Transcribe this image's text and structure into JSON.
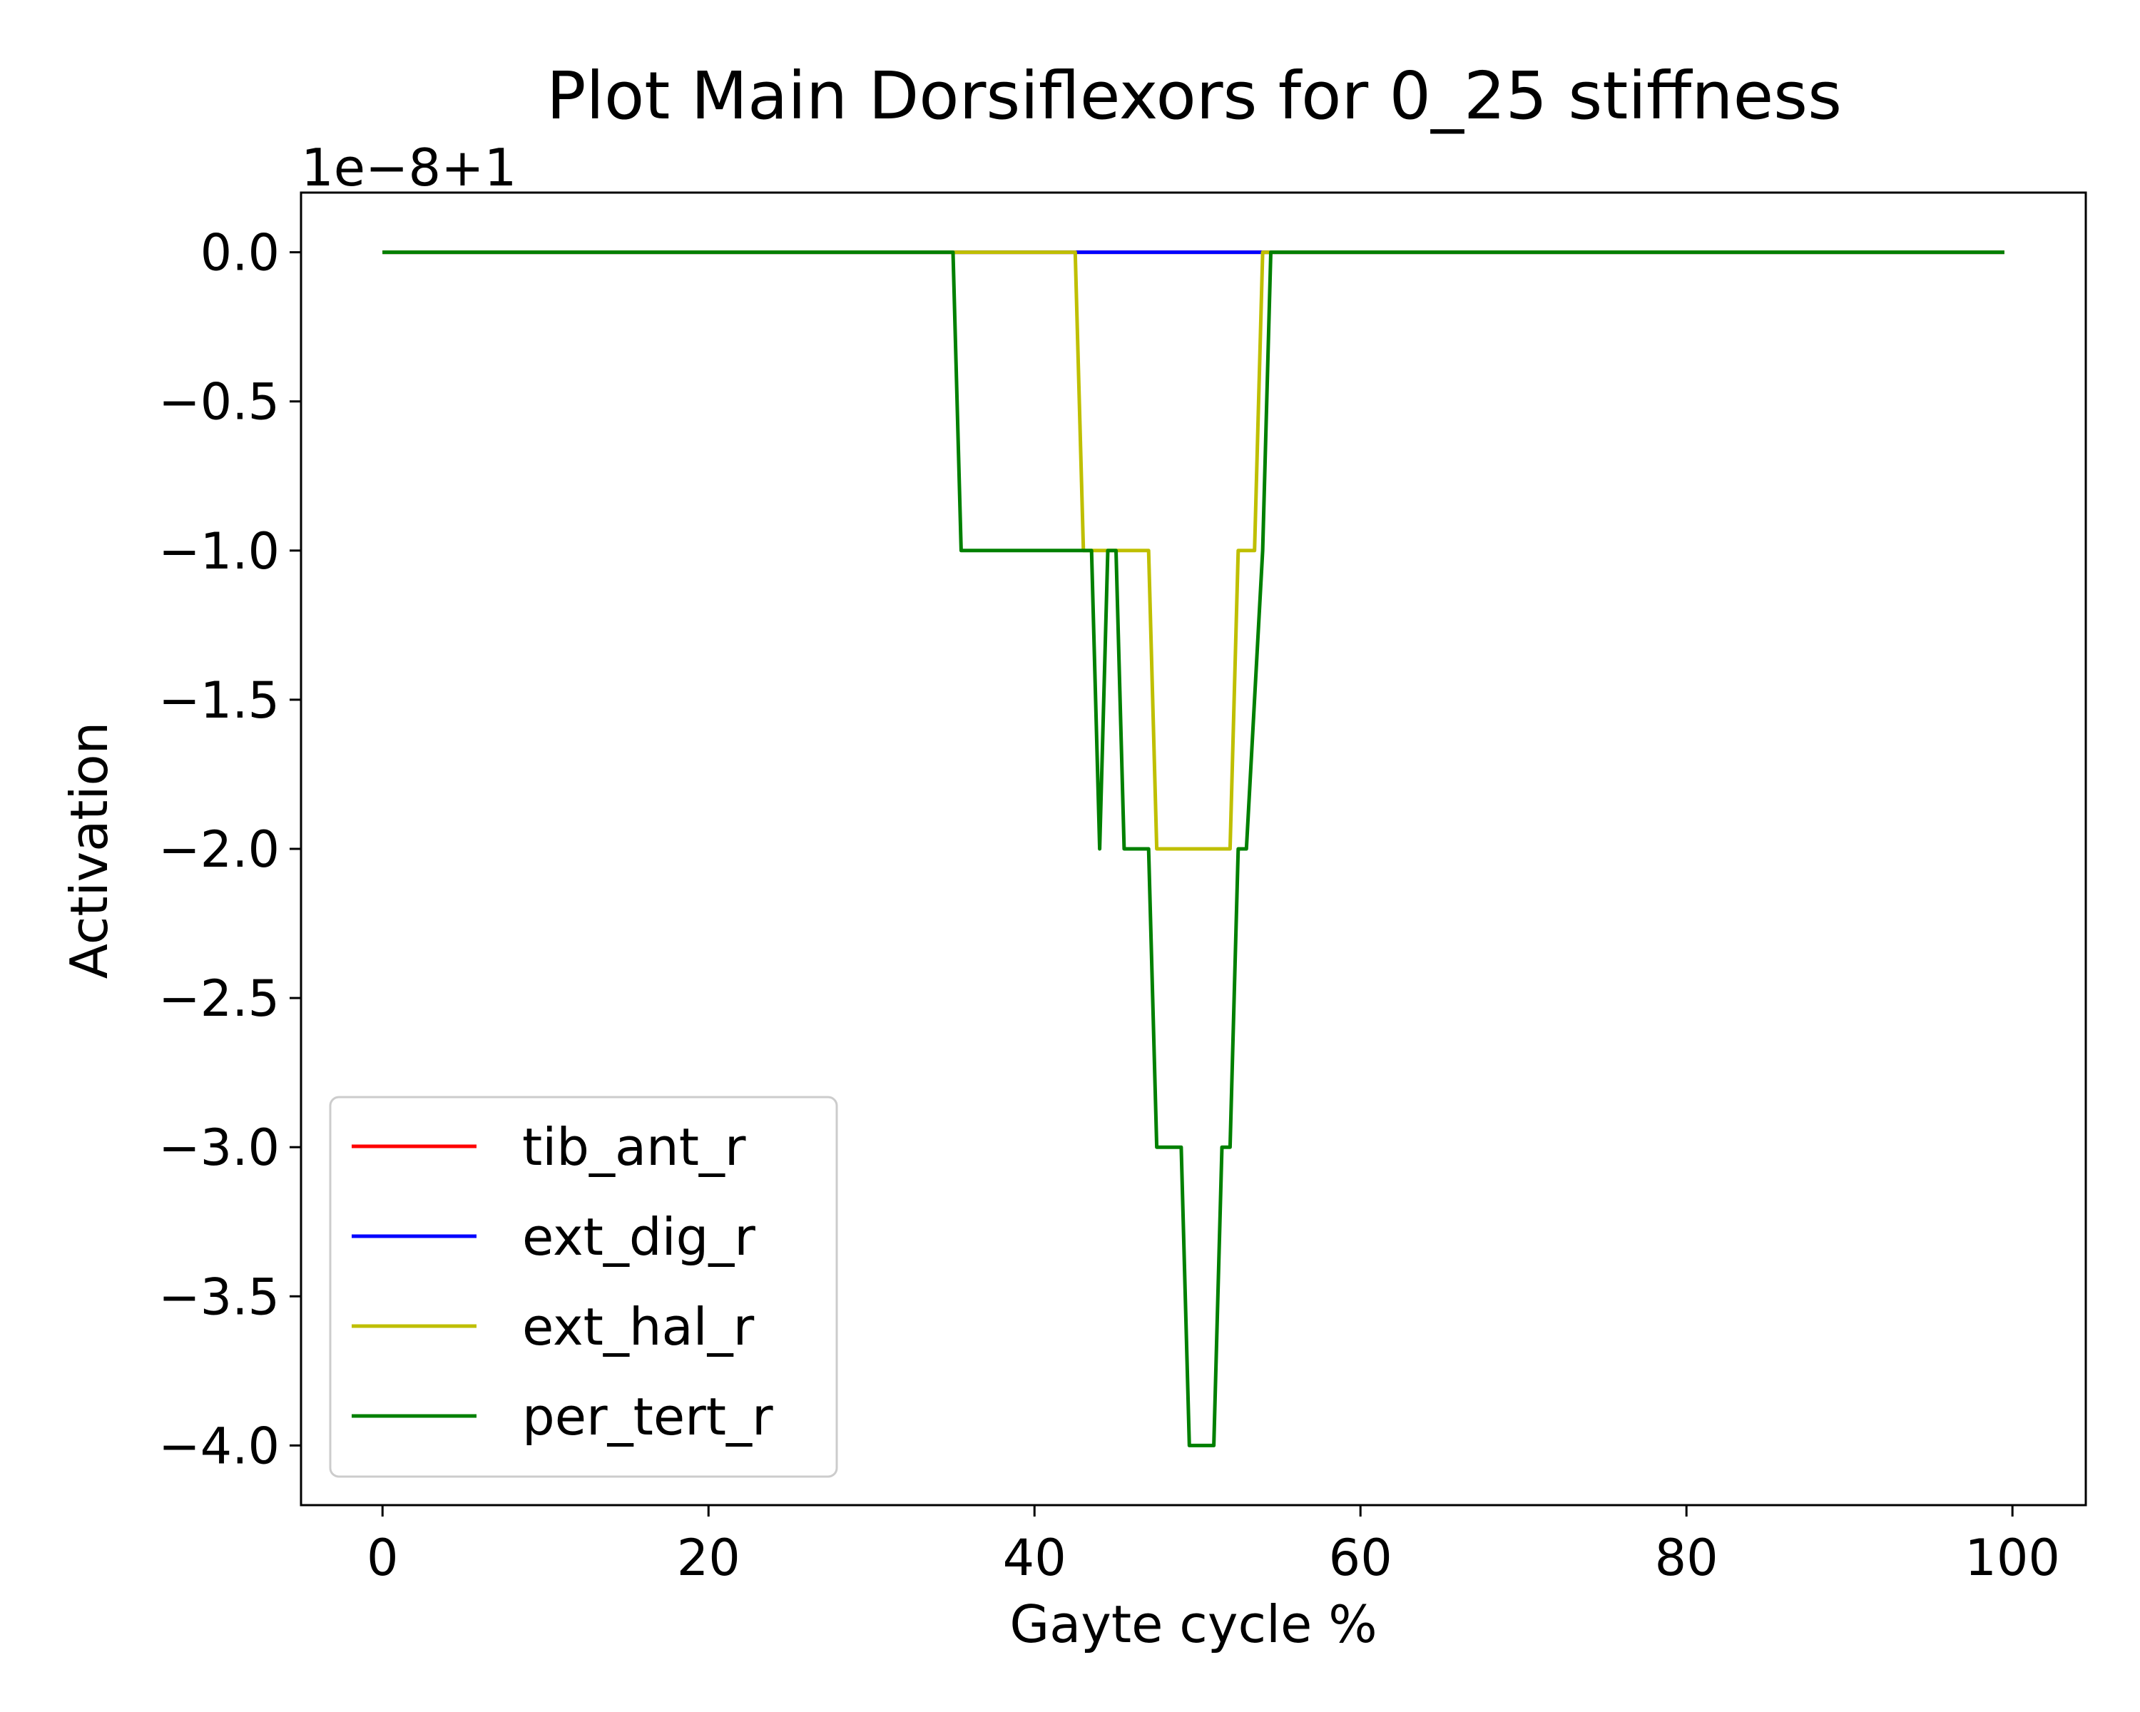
{
  "chart_data": {
    "type": "line",
    "title": "Plot Main Dorsiflexors for 0_25 stiffness",
    "xlabel": "Gayte cycle %",
    "ylabel": "Activation",
    "offset_text": "1e−8+1",
    "xlim": [
      -5,
      104.5
    ],
    "ylim": [
      -4.2,
      0.2
    ],
    "xticks": [
      0,
      20,
      40,
      60,
      80,
      100
    ],
    "yticks": [
      0.0,
      -0.5,
      -1.0,
      -1.5,
      -2.0,
      -2.5,
      -3.0,
      -3.5,
      -4.0
    ],
    "xtick_labels": [
      "0",
      "20",
      "40",
      "60",
      "80",
      "100"
    ],
    "ytick_labels": [
      "0.0",
      "−0.5",
      "−1.0",
      "−1.5",
      "−2.0",
      "−2.5",
      "−3.0",
      "−3.5",
      "−4.0"
    ],
    "grid": false,
    "legend_position": "lower-left",
    "series": [
      {
        "name": "tib_ant_r",
        "color": "#ff0000",
        "x": [
          0,
          99.5
        ],
        "y": [
          0,
          0
        ]
      },
      {
        "name": "ext_dig_r",
        "color": "#0000ff",
        "x": [
          0,
          99.5
        ],
        "y": [
          0,
          0
        ]
      },
      {
        "name": "ext_hal_r",
        "color": "#bfbf00",
        "x": [
          0,
          42.5,
          43,
          47,
          47.5,
          52,
          52.5,
          53.5,
          54,
          99.5
        ],
        "y": [
          0,
          0,
          -1,
          -1,
          -2,
          -2,
          -1,
          -1,
          0,
          0
        ]
      },
      {
        "name": "per_tert_r",
        "color": "#008000",
        "x": [
          0,
          35,
          35.5,
          43.5,
          44,
          44.5,
          45,
          45.5,
          47,
          47.5,
          49,
          49.5,
          51,
          51.5,
          52,
          52.5,
          53,
          54,
          54.5,
          99.5
        ],
        "y": [
          0,
          0,
          -1,
          -1,
          -2,
          -1,
          -1,
          -2,
          -2,
          -3,
          -3,
          -4,
          -4,
          -3,
          -3,
          -2,
          -2,
          -1,
          0,
          0
        ]
      }
    ]
  }
}
